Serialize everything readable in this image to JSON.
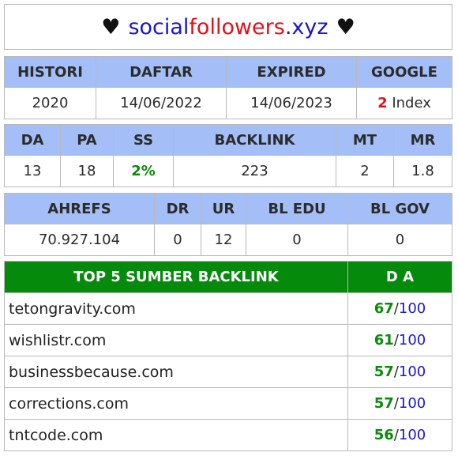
{
  "header": {
    "heart_left": "♥",
    "domain_part1": "social",
    "domain_part2": "followers",
    "domain_part3": ".xyz",
    "heart_right": "♥"
  },
  "table1": {
    "headers": [
      "HISTORI",
      "DAFTAR",
      "EXPIRED",
      "GOOGLE"
    ],
    "histori": "2020",
    "daftar": "14/06/2022",
    "expired": "14/06/2023",
    "google_count": "2",
    "google_label": "Index"
  },
  "table2": {
    "headers": [
      "DA",
      "PA",
      "SS",
      "BACKLINK",
      "MT",
      "MR"
    ],
    "da": "13",
    "pa": "18",
    "ss": "2%",
    "backlink": "223",
    "mt": "2",
    "mr": "1.8"
  },
  "table3": {
    "headers": [
      "AHREFS",
      "DR",
      "UR",
      "BL EDU",
      "BL GOV"
    ],
    "ahrefs": "70.927.104",
    "dr": "0",
    "ur": "12",
    "bl_edu": "0",
    "bl_gov": "0"
  },
  "table4": {
    "header_source": "TOP 5 SUMBER BACKLINK",
    "header_da": "D A",
    "rows": [
      {
        "site": "tetongravity.com",
        "da": "67",
        "max": "100"
      },
      {
        "site": "wishlistr.com",
        "da": "61",
        "max": "100"
      },
      {
        "site": "businessbecause.com",
        "da": "57",
        "max": "100"
      },
      {
        "site": "corrections.com",
        "da": "57",
        "max": "100"
      },
      {
        "site": "tntcode.com",
        "da": "56",
        "max": "100"
      }
    ],
    "separator": "/"
  },
  "colors": {
    "header_blue_bg": "#a4bff8",
    "header_green_bg": "#058a0b",
    "link_blue": "#1a17c9",
    "accent_red": "#e0121b",
    "value_green": "#0c8a0c"
  }
}
